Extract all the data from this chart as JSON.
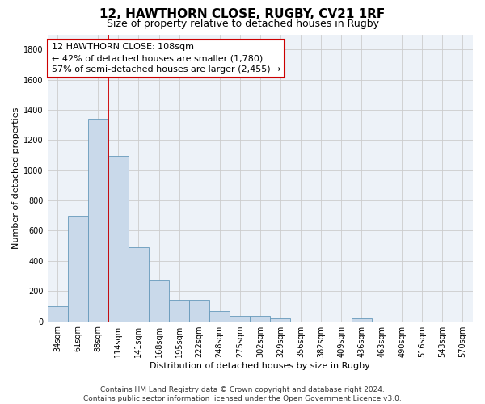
{
  "title": "12, HAWTHORN CLOSE, RUGBY, CV21 1RF",
  "subtitle": "Size of property relative to detached houses in Rugby",
  "xlabel": "Distribution of detached houses by size in Rugby",
  "ylabel": "Number of detached properties",
  "categories": [
    "34sqm",
    "61sqm",
    "88sqm",
    "114sqm",
    "141sqm",
    "168sqm",
    "195sqm",
    "222sqm",
    "248sqm",
    "275sqm",
    "302sqm",
    "329sqm",
    "356sqm",
    "382sqm",
    "409sqm",
    "436sqm",
    "463sqm",
    "490sqm",
    "516sqm",
    "543sqm",
    "570sqm"
  ],
  "values": [
    100,
    700,
    1340,
    1095,
    490,
    270,
    140,
    140,
    68,
    35,
    35,
    18,
    0,
    0,
    0,
    18,
    0,
    0,
    0,
    0,
    0
  ],
  "bar_color": "#c9d9ea",
  "bar_edgecolor": "#6699bb",
  "vline_index": 3,
  "vline_color": "#cc0000",
  "annotation_line1": "12 HAWTHORN CLOSE: 108sqm",
  "annotation_line2": "← 42% of detached houses are smaller (1,780)",
  "annotation_line3": "57% of semi-detached houses are larger (2,455) →",
  "annotation_box_edgecolor": "#cc0000",
  "ylim": [
    0,
    1900
  ],
  "yticks": [
    0,
    200,
    400,
    600,
    800,
    1000,
    1200,
    1400,
    1600,
    1800
  ],
  "grid_color": "#cccccc",
  "background_color": "#edf2f8",
  "footer_text": "Contains HM Land Registry data © Crown copyright and database right 2024.\nContains public sector information licensed under the Open Government Licence v3.0.",
  "title_fontsize": 11,
  "subtitle_fontsize": 9,
  "xlabel_fontsize": 8,
  "ylabel_fontsize": 8,
  "tick_fontsize": 7,
  "annotation_fontsize": 8,
  "footer_fontsize": 6.5
}
